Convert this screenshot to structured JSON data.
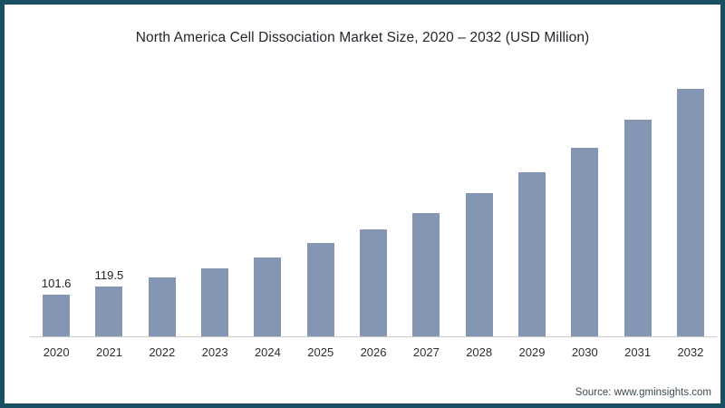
{
  "page": {
    "border_color": "#1b4f63",
    "background_color": "#ffffff"
  },
  "chart_data": {
    "type": "bar",
    "title": "North America Cell Dissociation Market Size, 2020 – 2032 (USD Million)",
    "categories": [
      "2020",
      "2021",
      "2022",
      "2023",
      "2024",
      "2025",
      "2026",
      "2027",
      "2028",
      "2029",
      "2030",
      "2031",
      "2032"
    ],
    "values": [
      101.6,
      119.5,
      141,
      163,
      191,
      224,
      258,
      297,
      344,
      396,
      455,
      523,
      597
    ],
    "data_labels": [
      "101.6",
      "119.5",
      "",
      "",
      "",
      "",
      "",
      "",
      "",
      "",
      "",
      "",
      ""
    ],
    "xlabel": "",
    "ylabel": "",
    "ylim": [
      0,
      620
    ],
    "grid": false,
    "legend": false,
    "bar_color": "#8496b4",
    "axis_line_color": "#cccccc",
    "label_color": "#222222",
    "tick_color": "#2e2e2e"
  },
  "footer": {
    "source_label": "Source: www.gminsights.com"
  }
}
